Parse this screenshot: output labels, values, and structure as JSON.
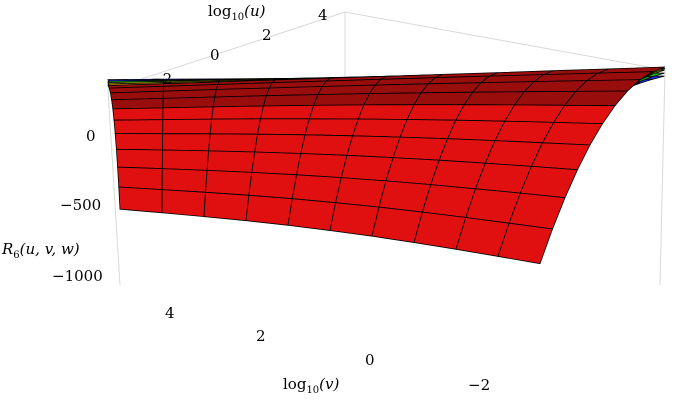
{
  "chart_data": {
    "type": "surface3d",
    "title": "",
    "axes": {
      "u": {
        "label_main": "log",
        "label_sub": "10",
        "label_arg": "(u)",
        "ticks": [
          "−2",
          "0",
          "2",
          "4"
        ]
      },
      "v": {
        "label_main": "log",
        "label_sub": "10",
        "label_arg": "(v)",
        "ticks": [
          "4",
          "2",
          "0",
          "−2"
        ]
      },
      "z": {
        "label": "R6(u, v, w)",
        "label_main": "R",
        "label_sub": "6",
        "label_args": "(u, v, w)",
        "ticks": [
          "0",
          "−500",
          "−1000"
        ]
      }
    },
    "ranges": {
      "u": [
        -3,
        4.5
      ],
      "v": [
        -3,
        5
      ],
      "z": [
        -1100,
        150
      ]
    },
    "surfaces": [
      {
        "name": "",
        "color": "#e01010",
        "corners": {
          "far_left": 30,
          "far_right": 20,
          "near_left": -700,
          "near_right": -1100
        }
      },
      {
        "name": "",
        "color": "#c87a08",
        "corners": {
          "far_left": 40,
          "far_right": 10,
          "near_left": -420,
          "near_right": -850
        }
      },
      {
        "name": "",
        "color": "#a8d800",
        "corners": {
          "far_left": 50,
          "far_right": 0,
          "near_left": -260,
          "near_right": -650
        }
      },
      {
        "name": "",
        "color": "#18b818",
        "corners": {
          "far_left": 60,
          "far_right": -20,
          "near_left": -150,
          "near_right": -450
        }
      },
      {
        "name": "",
        "color": "#1a2ef0",
        "corners": {
          "far_left": 70,
          "far_right": -40,
          "near_left": -70,
          "near_right": -250
        }
      }
    ],
    "colors": {
      "red": "#e01010",
      "orange": "#c87a08",
      "yellow_green": "#a8d800",
      "green": "#18b818",
      "blue": "#1a2ef0",
      "dark_red": "#9a0d0d"
    },
    "grid": false,
    "box": true
  }
}
